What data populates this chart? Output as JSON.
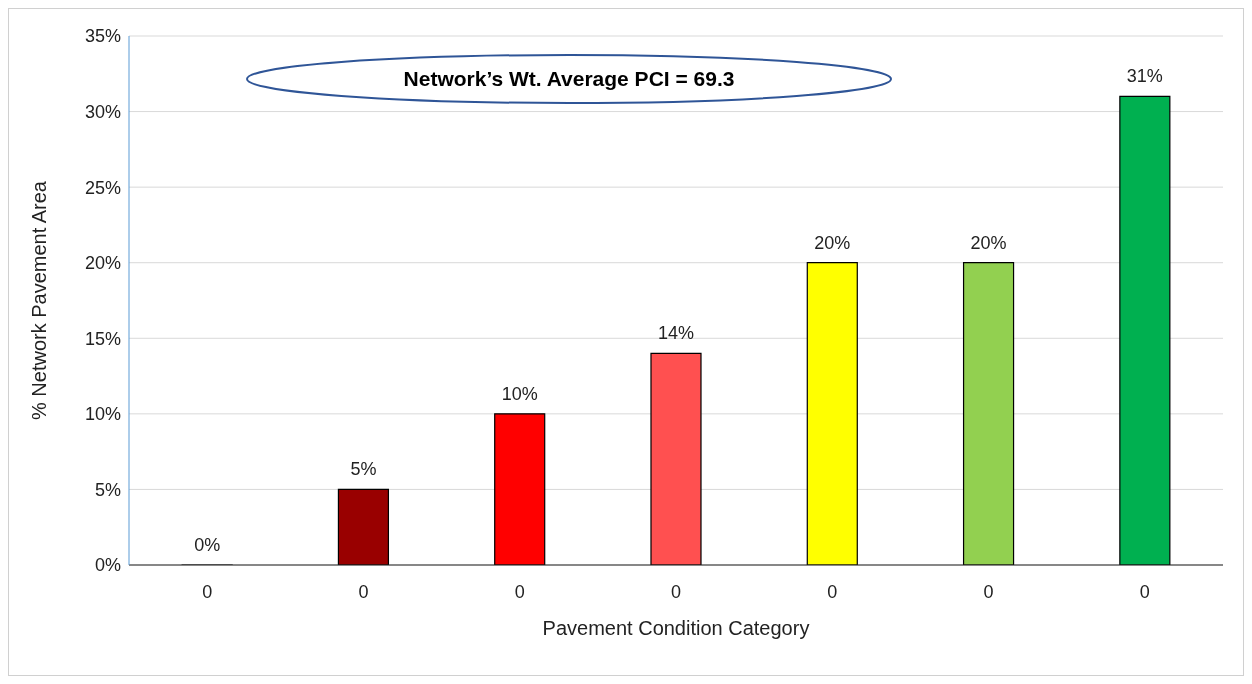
{
  "chart_data": {
    "type": "bar",
    "xlabel": "Pavement Condition Category",
    "ylabel": "% Network Pavement Area",
    "annotations": [
      "Network’s Wt. Average PCI = 69.3"
    ],
    "categories": [
      "0",
      "0",
      "0",
      "0",
      "0",
      "0",
      "0"
    ],
    "values": [
      0,
      5,
      10,
      14,
      20,
      20,
      31
    ],
    "value_labels": [
      "0%",
      "5%",
      "10%",
      "14%",
      "20%",
      "20%",
      "31%"
    ],
    "colors": [
      "#990000",
      "#990000",
      "#ff0000",
      "#ff5050",
      "#ffff00",
      "#92d050",
      "#00b050"
    ],
    "ylim": [
      0,
      35
    ],
    "yticks": [
      {
        "value": 0,
        "label": "0%"
      },
      {
        "value": 5,
        "label": "5%"
      },
      {
        "value": 10,
        "label": "10%"
      },
      {
        "value": 15,
        "label": "15%"
      },
      {
        "value": 20,
        "label": "20%"
      },
      {
        "value": 25,
        "label": "25%"
      },
      {
        "value": 30,
        "label": "30%"
      },
      {
        "value": 35,
        "label": "35%"
      }
    ],
    "grid": "y",
    "legend": false
  }
}
